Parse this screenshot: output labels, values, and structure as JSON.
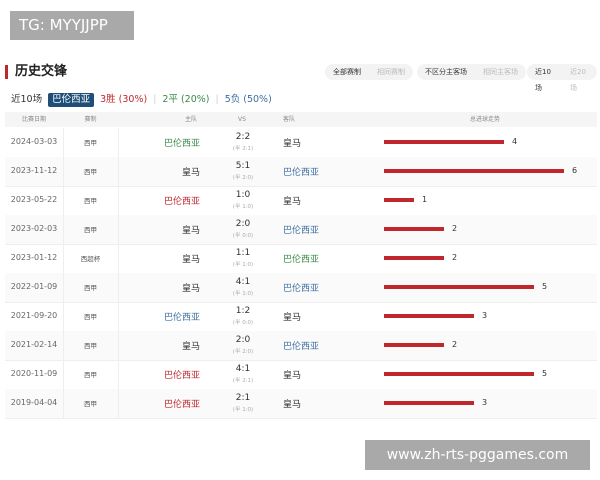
{
  "watermark_top": "TG: MYYJJPP",
  "watermark_bottom": "www.zh-rts-pggames.com",
  "section_title": "历史交锋",
  "filters": [
    [
      "全部赛制",
      "相同赛制"
    ],
    [
      "不区分主客场",
      "相同主客场"
    ],
    [
      "近10场",
      "近20场"
    ]
  ],
  "summary": {
    "range": "近10场",
    "team": "巴伦西亚",
    "wins": "3胜 (30%)",
    "draws": "2平 (20%)",
    "losses": "5负 (50%)"
  },
  "columns": {
    "date": "比赛日期",
    "comp": "赛制",
    "home": "主队",
    "vs": "VS",
    "away": "客队",
    "goals": "总进球走势"
  },
  "colors": {
    "win": "#c0272d",
    "draw": "#3a8a4a",
    "loss": "#3f6ea0",
    "bar": "#c0272d"
  },
  "matches": [
    {
      "date": "2024-03-03",
      "comp": "西甲",
      "home": "巴伦西亚",
      "score": "2:2",
      "half": "(半 2:1)",
      "away": "皇马",
      "goals": 4,
      "result": "draw",
      "valencia": "home"
    },
    {
      "date": "2023-11-12",
      "comp": "西甲",
      "home": "皇马",
      "score": "5:1",
      "half": "(半 2:0)",
      "away": "巴伦西亚",
      "goals": 6,
      "result": "loss",
      "valencia": "away"
    },
    {
      "date": "2023-05-22",
      "comp": "西甲",
      "home": "巴伦西亚",
      "score": "1:0",
      "half": "(半 1:0)",
      "away": "皇马",
      "goals": 1,
      "result": "win",
      "valencia": "home"
    },
    {
      "date": "2023-02-03",
      "comp": "西甲",
      "home": "皇马",
      "score": "2:0",
      "half": "(半 0:0)",
      "away": "巴伦西亚",
      "goals": 2,
      "result": "loss",
      "valencia": "away"
    },
    {
      "date": "2023-01-12",
      "comp": "西超杯",
      "home": "皇马",
      "score": "1:1",
      "half": "(半 1:0)",
      "away": "巴伦西亚",
      "goals": 2,
      "result": "draw",
      "valencia": "away"
    },
    {
      "date": "2022-01-09",
      "comp": "西甲",
      "home": "皇马",
      "score": "4:1",
      "half": "(半 1:0)",
      "away": "巴伦西亚",
      "goals": 5,
      "result": "loss",
      "valencia": "away"
    },
    {
      "date": "2021-09-20",
      "comp": "西甲",
      "home": "巴伦西亚",
      "score": "1:2",
      "half": "(半 0:0)",
      "away": "皇马",
      "goals": 3,
      "result": "loss",
      "valencia": "home"
    },
    {
      "date": "2021-02-14",
      "comp": "西甲",
      "home": "皇马",
      "score": "2:0",
      "half": "(半 2:0)",
      "away": "巴伦西亚",
      "goals": 2,
      "result": "loss",
      "valencia": "away"
    },
    {
      "date": "2020-11-09",
      "comp": "西甲",
      "home": "巴伦西亚",
      "score": "4:1",
      "half": "(半 2:1)",
      "away": "皇马",
      "goals": 5,
      "result": "win",
      "valencia": "home"
    },
    {
      "date": "2019-04-04",
      "comp": "西甲",
      "home": "巴伦西亚",
      "score": "2:1",
      "half": "(半 1:0)",
      "away": "皇马",
      "goals": 3,
      "result": "win",
      "valencia": "home"
    }
  ]
}
